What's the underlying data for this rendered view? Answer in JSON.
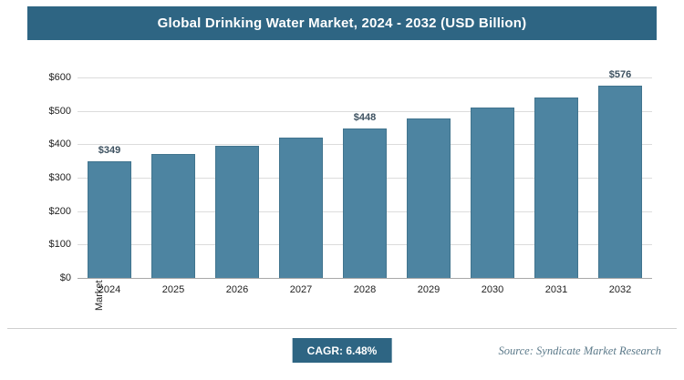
{
  "header": {
    "title": "Global Drinking Water Market, 2024 - 2032 (USD Billion)"
  },
  "colors": {
    "accent": "#2e6583",
    "bar": "#4d84a1",
    "grid": "#dcdcdc",
    "data_label": "#3d5160"
  },
  "chart_data": {
    "type": "bar",
    "title": "Global Drinking Water Market, 2024 - 2032 (USD Billion)",
    "categories": [
      "2024",
      "2025",
      "2026",
      "2027",
      "2028",
      "2029",
      "2030",
      "2031",
      "2032"
    ],
    "values": [
      349,
      372,
      396,
      421,
      448,
      478,
      509,
      541,
      576
    ],
    "data_labels": [
      "$349",
      null,
      null,
      null,
      "$448",
      null,
      null,
      null,
      "$576"
    ],
    "xlabel": "",
    "ylabel": "Market Size (USD Billion)",
    "ylim": [
      0,
      600
    ],
    "yticks": [
      0,
      100,
      200,
      300,
      400,
      500,
      600
    ],
    "ytick_labels": [
      "$0",
      "$100",
      "$200",
      "$300",
      "$400",
      "$500",
      "$600"
    ],
    "grid": true,
    "legend": "none",
    "bar_color": "#4d84a1"
  },
  "footer": {
    "cagr_label": "CAGR: 6.48%",
    "source": "Source: Syndicate Market Research"
  }
}
